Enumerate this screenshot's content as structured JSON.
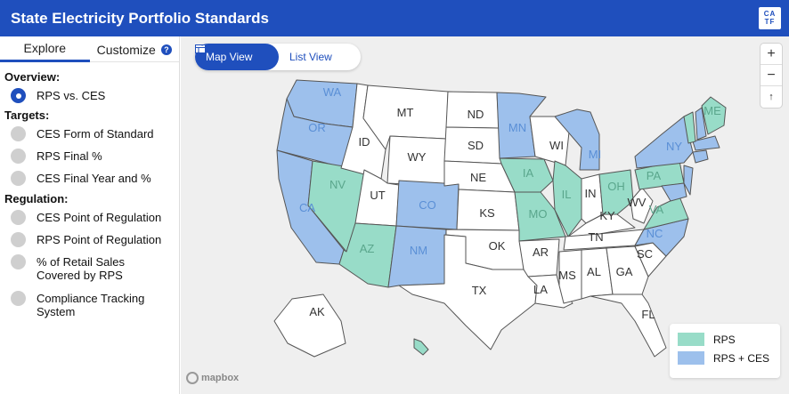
{
  "header": {
    "title": "State Electricity Portfolio Standards",
    "logo_text": "CA TF"
  },
  "sidebar": {
    "tabs": [
      {
        "label": "Explore"
      },
      {
        "label": "Customize"
      }
    ],
    "help_glyph": "?",
    "overview": {
      "heading": "Overview:",
      "options": [
        {
          "label": "RPS vs. CES",
          "selected": true
        }
      ]
    },
    "targets": {
      "heading": "Targets:",
      "options": [
        {
          "label": "CES Form of Standard"
        },
        {
          "label": "RPS Final %"
        },
        {
          "label": "CES Final Year and %"
        }
      ]
    },
    "regulation": {
      "heading": "Regulation:",
      "options": [
        {
          "label": "CES Point of Regulation"
        },
        {
          "label": "RPS Point of Regulation"
        },
        {
          "label": "% of Retail Sales Covered by RPS"
        },
        {
          "label": "Compliance Tracking System"
        }
      ]
    }
  },
  "map": {
    "view_toggle": {
      "map_label": "Map View",
      "list_label": "List View"
    },
    "zoom": {
      "in": "+",
      "out": "−",
      "reset": "↑"
    },
    "legend": [
      {
        "label": "RPS",
        "color": "#98dcc8"
      },
      {
        "label": "RPS + CES",
        "color": "#9dc0ec"
      }
    ],
    "attribution": "mapbox",
    "colors": {
      "rps": "#98dcc8",
      "rps_ces": "#9dc0ec",
      "none": "#ffffff",
      "water": "#efefef"
    },
    "state_labels": [
      "WA",
      "OR",
      "CA",
      "NV",
      "ID",
      "MT",
      "WY",
      "UT",
      "AZ",
      "CO",
      "NM",
      "ND",
      "SD",
      "NE",
      "KS",
      "OK",
      "TX",
      "MN",
      "IA",
      "MO",
      "AR",
      "LA",
      "WI",
      "IL",
      "MI",
      "IN",
      "OH",
      "KY",
      "TN",
      "MS",
      "AL",
      "GA",
      "FL",
      "SC",
      "NC",
      "VA",
      "WV",
      "PA",
      "NY",
      "ME",
      "AK"
    ]
  }
}
